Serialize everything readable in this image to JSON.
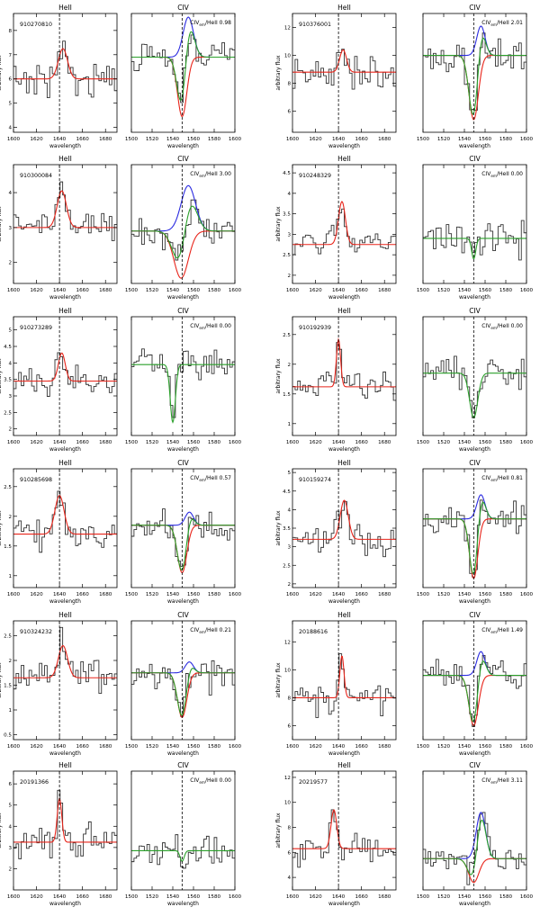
{
  "chart_data": {
    "type": "line",
    "layout": "6 rows x 2 objects; each object has a HeII panel and a CIV panel",
    "ylabel": "arbitrary flux",
    "xlabel": "wavelength",
    "heii_title": "HeII",
    "civ_title": "CIV",
    "heii_xrange": [
      1600,
      1690
    ],
    "heii_xticks": [
      1600,
      1620,
      1640,
      1660,
      1680
    ],
    "heii_dashed_x": 1640,
    "civ_xrange": [
      1500,
      1600
    ],
    "civ_xticks": [
      1500,
      1520,
      1540,
      1560,
      1580,
      1600
    ],
    "civ_dashed_x": 1549,
    "ratio_label_prefix": "CIV",
    "ratio_label_sub": "em",
    "ratio_label_suffix": "/HeII",
    "colors": {
      "data": "#333333",
      "heii_fit": "#e8241a",
      "civ_emission": "#2a2ae0",
      "civ_absorption": "#e8241a",
      "civ_total": "#2aa02a",
      "dashed": "#000000"
    },
    "objects": [
      {
        "id": "910270810",
        "ratio": "0.98",
        "heii": {
          "ylim": [
            3.8,
            8.7
          ],
          "yticks": [
            4,
            5,
            6,
            7,
            8
          ],
          "base": 6.0,
          "amp": 1.25,
          "center": 1643,
          "sigma": 4.0
        },
        "civ": {
          "ylim": [
            3.8,
            8.7
          ],
          "base": 6.9,
          "em_amp": 1.65,
          "em_center": 1555,
          "em_sigma": 5.0,
          "abs_amp": 2.45,
          "abs_center": 1549,
          "abs_sigma": 4.5
        }
      },
      {
        "id": "910376001",
        "ratio": "2.01",
        "heii": {
          "ylim": [
            4.5,
            13.0
          ],
          "yticks": [
            6,
            8,
            10,
            12
          ],
          "base": 8.8,
          "amp": 1.6,
          "center": 1644,
          "sigma": 3.0
        },
        "civ": {
          "ylim": [
            4.5,
            13.0
          ],
          "base": 10.0,
          "em_amp": 2.1,
          "em_center": 1556,
          "em_sigma": 4.0,
          "abs_amp": 4.6,
          "abs_center": 1549,
          "abs_sigma": 4.5
        }
      },
      {
        "id": "910300084",
        "ratio": "3.00",
        "heii": {
          "ylim": [
            1.4,
            4.8
          ],
          "yticks": [
            2,
            3,
            4
          ],
          "base": 3.0,
          "amp": 1.05,
          "center": 1642,
          "sigma": 4.0
        },
        "civ": {
          "ylim": [
            1.4,
            4.8
          ],
          "base": 2.9,
          "em_amp": 1.3,
          "em_center": 1555,
          "em_sigma": 7.0,
          "abs_amp": 1.35,
          "abs_center": 1548,
          "abs_sigma": 7.0
        }
      },
      {
        "id": "910248329",
        "ratio": "0.00",
        "heii": {
          "ylim": [
            1.8,
            4.7
          ],
          "yticks": [
            2.0,
            2.5,
            3.0,
            3.5,
            4.0,
            4.5
          ],
          "base": 2.75,
          "amp": 1.05,
          "center": 1643,
          "sigma": 3.0
        },
        "civ": {
          "ylim": [
            1.8,
            4.7
          ],
          "base": 2.9,
          "em_amp": 0.0,
          "em_center": 1555,
          "em_sigma": 5.0,
          "abs_amp": 0.5,
          "abs_center": 1549,
          "abs_sigma": 2.0
        }
      },
      {
        "id": "910273289",
        "ratio": "0.00",
        "heii": {
          "ylim": [
            1.8,
            5.4
          ],
          "yticks": [
            2.0,
            2.5,
            3.0,
            3.5,
            4.0,
            4.5,
            5.0
          ],
          "base": 3.45,
          "amp": 0.85,
          "center": 1642,
          "sigma": 3.0
        },
        "civ": {
          "ylim": [
            1.8,
            5.4
          ],
          "base": 3.95,
          "em_amp": 0.0,
          "em_center": 1555,
          "em_sigma": 5.0,
          "abs_amp": 1.75,
          "abs_center": 1540,
          "abs_sigma": 2.5
        }
      },
      {
        "id": "910192939",
        "ratio": "0.00",
        "heii": {
          "ylim": [
            0.8,
            2.8
          ],
          "yticks": [
            1.0,
            1.5,
            2.0,
            2.5
          ],
          "base": 1.62,
          "amp": 0.8,
          "center": 1640,
          "sigma": 1.8
        },
        "civ": {
          "ylim": [
            0.8,
            2.8
          ],
          "base": 1.85,
          "em_amp": 0.0,
          "em_center": 1555,
          "em_sigma": 5.0,
          "abs_amp": 0.75,
          "abs_center": 1549,
          "abs_sigma": 4.0
        }
      },
      {
        "id": "910285698",
        "ratio": "0.57",
        "heii": {
          "ylim": [
            0.8,
            2.8
          ],
          "yticks": [
            1.0,
            1.5,
            2.0,
            2.5
          ],
          "base": 1.7,
          "amp": 0.65,
          "center": 1640,
          "sigma": 4.0
        },
        "civ": {
          "ylim": [
            0.8,
            2.8
          ],
          "base": 1.85,
          "em_amp": 0.22,
          "em_center": 1556,
          "em_sigma": 4.0,
          "abs_amp": 0.8,
          "abs_center": 1549,
          "abs_sigma": 4.5
        }
      },
      {
        "id": "910159274",
        "ratio": "0.81",
        "heii": {
          "ylim": [
            1.9,
            5.1
          ],
          "yticks": [
            2.0,
            2.5,
            3.0,
            3.5,
            4.0,
            4.5,
            5.0
          ],
          "base": 3.2,
          "amp": 1.05,
          "center": 1645,
          "sigma": 3.5
        },
        "civ": {
          "ylim": [
            1.9,
            5.1
          ],
          "base": 3.75,
          "em_amp": 0.65,
          "em_center": 1556,
          "em_sigma": 4.0,
          "abs_amp": 1.6,
          "abs_center": 1549,
          "abs_sigma": 4.0
        }
      },
      {
        "id": "910324232",
        "ratio": "0.21",
        "heii": {
          "ylim": [
            0.4,
            2.8
          ],
          "yticks": [
            0.5,
            1.0,
            1.5,
            2.0,
            2.5
          ],
          "base": 1.65,
          "amp": 0.65,
          "center": 1643,
          "sigma": 4.0
        },
        "civ": {
          "ylim": [
            0.4,
            2.8
          ],
          "base": 1.75,
          "em_amp": 0.22,
          "em_center": 1556,
          "em_sigma": 4.0,
          "abs_amp": 0.9,
          "abs_center": 1549,
          "abs_sigma": 4.5
        }
      },
      {
        "id": "20188616",
        "ratio": "1.49",
        "heii": {
          "ylim": [
            5.0,
            13.5
          ],
          "yticks": [
            6,
            8,
            10,
            12
          ],
          "base": 8.0,
          "amp": 3.0,
          "center": 1643,
          "sigma": 1.8
        },
        "civ": {
          "ylim": [
            5.0,
            13.5
          ],
          "base": 9.6,
          "em_amp": 1.7,
          "em_center": 1556,
          "em_sigma": 4.0,
          "abs_amp": 3.6,
          "abs_center": 1549,
          "abs_sigma": 4.5
        }
      },
      {
        "id": "20191366",
        "ratio": "0.00",
        "heii": {
          "ylim": [
            1.0,
            6.6
          ],
          "yticks": [
            2,
            3,
            4,
            5,
            6
          ],
          "base": 3.25,
          "amp": 2.05,
          "center": 1640,
          "sigma": 2.0
        },
        "civ": {
          "ylim": [
            1.0,
            6.6
          ],
          "base": 2.85,
          "em_amp": 0.0,
          "em_center": 1555,
          "em_sigma": 5.0,
          "abs_amp": 0.5,
          "abs_center": 1549,
          "abs_sigma": 2.0
        }
      },
      {
        "id": "20219577",
        "ratio": "3.11",
        "heii": {
          "ylim": [
            3.0,
            12.5
          ],
          "yticks": [
            4,
            6,
            8,
            10,
            12
          ],
          "base": 6.3,
          "amp": 3.1,
          "center": 1636,
          "sigma": 2.5
        },
        "civ": {
          "ylim": [
            3.0,
            12.5
          ],
          "base": 5.5,
          "em_amp": 3.7,
          "em_center": 1556,
          "em_sigma": 4.5,
          "abs_amp": 1.9,
          "abs_center": 1549,
          "abs_sigma": 5.0
        }
      }
    ]
  }
}
